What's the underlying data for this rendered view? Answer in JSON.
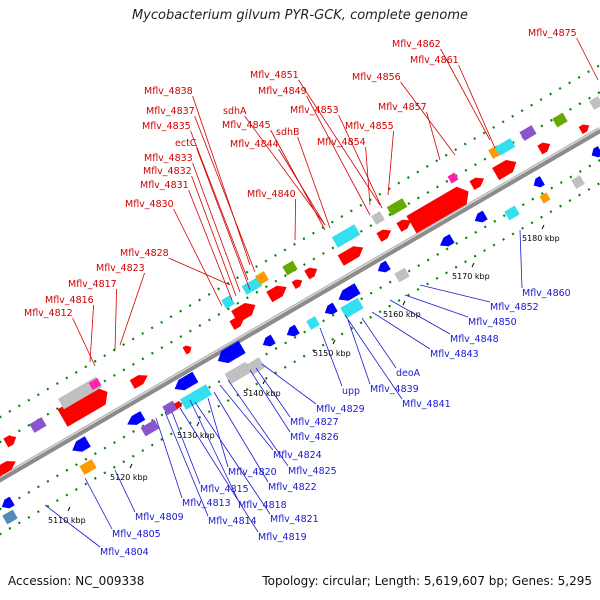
{
  "title": "Mycobacterium gilvum PYR-GCK, complete genome",
  "footer": {
    "accession": "Accession: NC_009338",
    "summary": "Topology: circular; Length: 5,619,607 bp; Genes: 5,295"
  },
  "colors": {
    "forward_gene": "#ff0000",
    "reverse_gene": "#0000ff",
    "forward_label": "#d40000",
    "reverse_label": "#1a1ad0",
    "backbone": "#8c8c8c",
    "grey_feature": "#c0c0c0",
    "cyan_feature": "#33e0f0",
    "green_feature": "#66aa00",
    "orange_feature": "#ff9900",
    "purple_feature": "#8855cc",
    "magenta_feature": "#ff22aa",
    "steel_feature": "#5588bb"
  },
  "ticks": [
    "5110 kbp",
    "5120 kbp",
    "5130 kbp",
    "5140 kbp",
    "5150 kbp",
    "5160 kbp",
    "5170 kbp",
    "5180 kbp"
  ],
  "top_labels": [
    "Mflv_4875",
    "Mflv_4862",
    "Mflv_4861",
    "Mflv_4856",
    "Mflv_4851",
    "Mflv_4849",
    "Mflv_4853",
    "Mflv_4857",
    "Mflv_4838",
    "Mflv_4837",
    "sdhA",
    "Mflv_4835",
    "Mflv_4845",
    "sdhB",
    "Mflv_4855",
    "Mflv_4854",
    "ectC",
    "Mflv_4844",
    "Mflv_4833",
    "Mflv_4832",
    "Mflv_4831",
    "Mflv_4840",
    "Mflv_4830",
    "Mflv_4828",
    "Mflv_4823",
    "Mflv_4817",
    "Mflv_4816",
    "Mflv_4812"
  ],
  "bottom_labels": [
    "Mflv_4860",
    "Mflv_4852",
    "Mflv_4850",
    "Mflv_4848",
    "Mflv_4843",
    "deoA",
    "Mflv_4839",
    "Mflv_4841",
    "upp",
    "Mflv_4829",
    "Mflv_4827",
    "Mflv_4826",
    "Mflv_4824",
    "Mflv_4825",
    "Mflv_4820",
    "Mflv_4822",
    "Mflv_4815",
    "Mflv_4818",
    "Mflv_4813",
    "Mflv_4821",
    "Mflv_4814",
    "Mflv_4809",
    "Mflv_4819",
    "Mflv_4805",
    "Mflv_4804"
  ]
}
